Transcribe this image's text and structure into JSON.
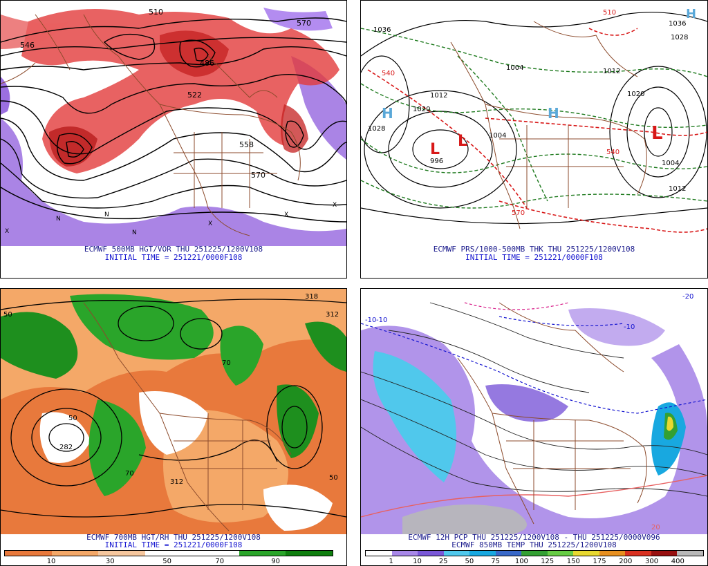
{
  "panels": {
    "top_left": {
      "caption": "ECMWF 500MB HGT/VOR THU 251225/1200V108",
      "initial": "INITIAL TIME = 251221/0000F108",
      "contour_labels": [
        "546",
        "510",
        "570",
        "486",
        "522",
        "558",
        "570"
      ],
      "marker_letters": [
        "N",
        "X"
      ]
    },
    "top_right": {
      "caption": "ECMWF PRS/1000-500MB THK THU 251225/1200V108",
      "initial": "INITIAL TIME = 251221/0000F108",
      "pressure_labels": [
        "1036",
        "1028",
        "1020",
        "1012",
        "1004",
        "996",
        "1004",
        "1012",
        "1020",
        "1036",
        "1028",
        "1004",
        "1012"
      ],
      "thickness_labels": [
        "540",
        "570",
        "540",
        "510"
      ],
      "systems": [
        "H",
        "H",
        "H",
        "L",
        "L",
        "L"
      ]
    },
    "bottom_left": {
      "caption": "ECMWF 700MB HGT/RH THU 251225/1200V108",
      "initial": "INITIAL TIME = 251221/0000F108",
      "contour_labels": [
        "318",
        "312",
        "50",
        "70",
        "70",
        "50",
        "282",
        "312",
        "50"
      ],
      "legend_labels": [
        "10",
        "30",
        "50",
        "70",
        "90"
      ],
      "legend_colors": [
        "#e8793c",
        "#f4a868",
        "#f6c79e",
        "#ffffff",
        "#ffffff",
        "#2aa52a",
        "#0f7f0f"
      ]
    },
    "bottom_right": {
      "caption1": "ECMWF 12H PCP THU 251225/1200V108 - THU 251225/0000V096",
      "caption2": "ECMWF 850MB TEMP THU 251225/1200V108",
      "contour_labels": [
        "-10",
        "-10",
        "-10",
        "-20",
        "20"
      ],
      "legend_labels": [
        "1",
        "10",
        "25",
        "50",
        "75",
        "100",
        "125",
        "150",
        "175",
        "200",
        "300",
        "400"
      ],
      "legend_colors": [
        "#ffffff",
        "#a888e8",
        "#7a58d8",
        "#50c8ec",
        "#18a8e0",
        "#3868c8",
        "#33a033",
        "#66cc44",
        "#e8d830",
        "#e89020",
        "#d83020",
        "#981010",
        "#b8b8b8"
      ]
    }
  }
}
